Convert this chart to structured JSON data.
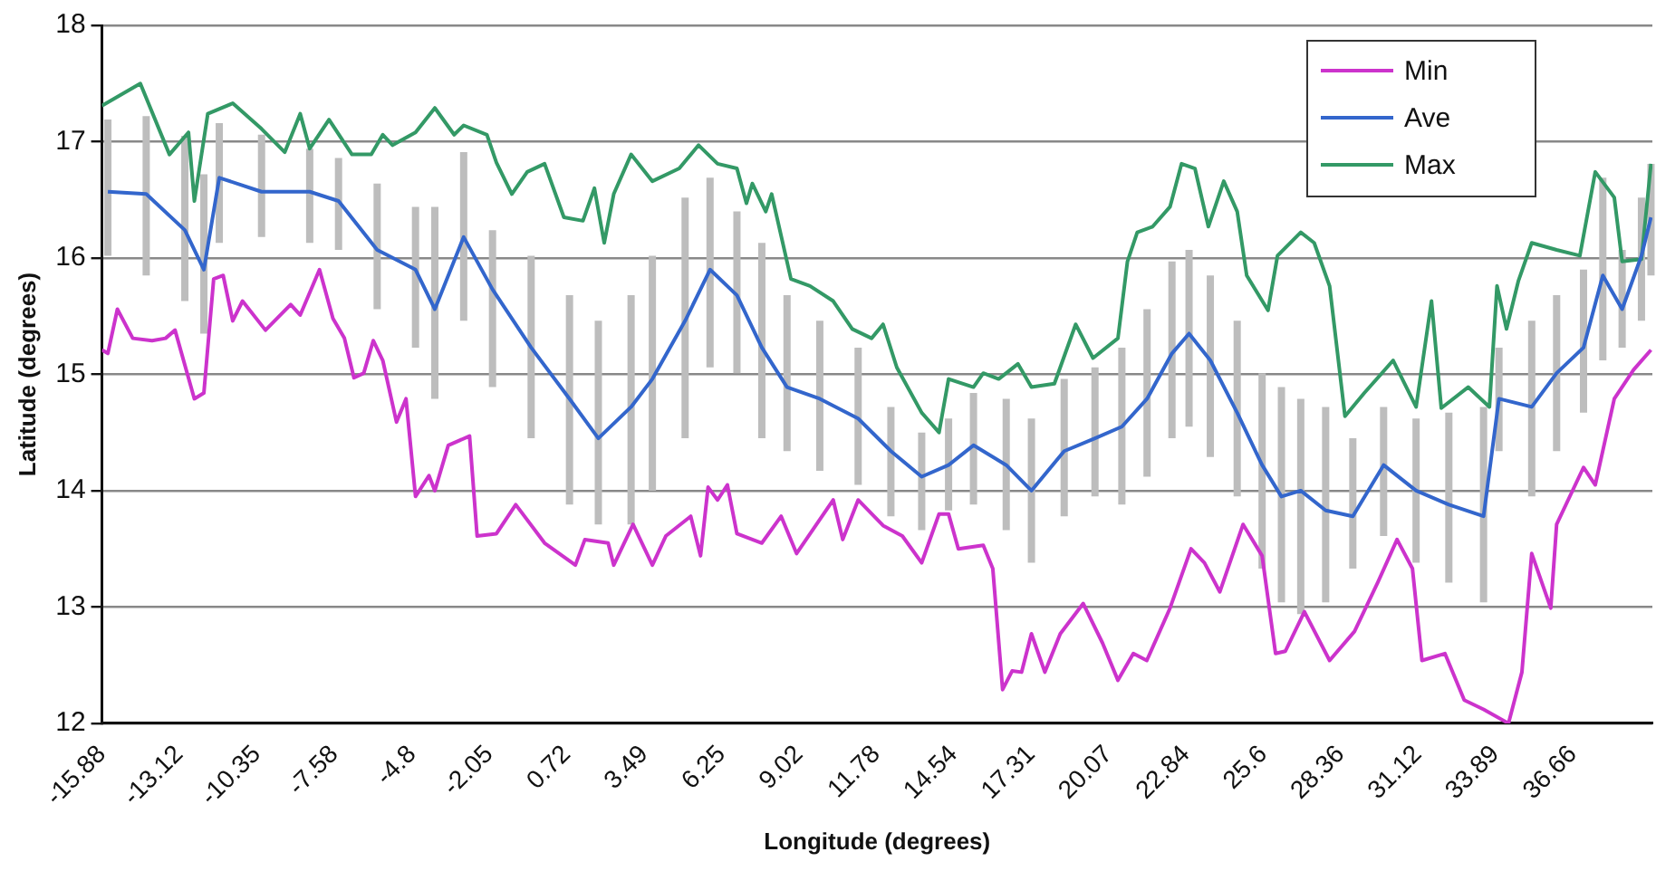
{
  "chart_data": {
    "type": "line",
    "xlabel": "Longitude (degrees)",
    "ylabel": "Latitude (degrees)",
    "xlim": [
      -15.88,
      39.5
    ],
    "xticks": [
      -15.88,
      -13.12,
      -10.35,
      -7.58,
      -4.8,
      -2.05,
      0.72,
      3.49,
      6.25,
      9.02,
      11.78,
      14.54,
      17.31,
      20.07,
      22.84,
      25.6,
      28.36,
      31.12,
      33.89,
      36.66
    ],
    "ylim": [
      12,
      18
    ],
    "yticks": [
      12,
      13,
      14,
      15,
      16,
      17,
      18
    ],
    "grid": "y",
    "legend": "top right",
    "marker": "none",
    "line_style": "solid",
    "series": [
      {
        "name": "Min",
        "color": "#cc33cc",
        "x": [
          -15.88,
          -15.67,
          -15.33,
          -14.78,
          -14.09,
          -13.61,
          -13.27,
          -12.58,
          -12.24,
          -11.89,
          -11.55,
          -11.21,
          -10.86,
          -10.04,
          -9.14,
          -8.8,
          -8.11,
          -7.63,
          -7.22,
          -6.88,
          -6.53,
          -6.19,
          -5.85,
          -5.36,
          -5.02,
          -4.68,
          -4.2,
          -3.99,
          -3.51,
          -2.75,
          -2.48,
          -1.79,
          -1.1,
          -0.07,
          1.03,
          1.37,
          2.2,
          2.4,
          3.09,
          3.78,
          4.26,
          5.15,
          5.5,
          5.77,
          6.11,
          6.46,
          6.8,
          7.69,
          8.38,
          8.93,
          10.24,
          10.58,
          11.13,
          12.02,
          12.71,
          13.4,
          14.02,
          14.36,
          14.71,
          15.6,
          15.94,
          16.29,
          16.63,
          16.97,
          17.32,
          17.8,
          18.35,
          19.17,
          19.86,
          20.41,
          20.96,
          21.44,
          22.27,
          23.02,
          23.5,
          24.05,
          24.88,
          25.56,
          26.04,
          26.39,
          27.07,
          27.97,
          28.86,
          29.69,
          30.38,
          30.93,
          31.27,
          32.09,
          32.78,
          33.47,
          34.36,
          34.84,
          35.19,
          35.87,
          36.08,
          37.04,
          37.46,
          38.14,
          38.83,
          39.45
        ],
        "values": [
          15.21,
          15.18,
          15.56,
          15.31,
          15.29,
          15.31,
          15.38,
          14.79,
          14.84,
          15.82,
          15.85,
          15.46,
          15.63,
          15.38,
          15.6,
          15.51,
          15.9,
          15.48,
          15.31,
          14.97,
          15.01,
          15.29,
          15.12,
          14.59,
          14.79,
          13.95,
          14.13,
          14.0,
          14.39,
          14.47,
          13.61,
          13.63,
          13.88,
          13.55,
          13.36,
          13.58,
          13.55,
          13.36,
          13.71,
          13.36,
          13.61,
          13.78,
          13.44,
          14.03,
          13.92,
          14.05,
          13.63,
          13.55,
          13.78,
          13.46,
          13.92,
          13.58,
          13.92,
          13.7,
          13.61,
          13.38,
          13.8,
          13.8,
          13.5,
          13.53,
          13.33,
          12.29,
          12.45,
          12.44,
          12.77,
          12.44,
          12.77,
          13.03,
          12.69,
          12.37,
          12.6,
          12.54,
          12.99,
          13.5,
          13.38,
          13.13,
          13.71,
          13.44,
          12.6,
          12.62,
          12.96,
          12.54,
          12.79,
          13.21,
          13.58,
          13.33,
          12.54,
          12.6,
          12.2,
          12.12,
          12.0,
          12.44,
          13.46,
          12.99,
          13.71,
          14.2,
          14.05,
          14.79,
          15.04,
          15.21
        ]
      },
      {
        "name": "Ave",
        "color": "#3366cc",
        "x": [
          -15.67,
          -14.3,
          -12.92,
          -12.24,
          -11.69,
          -10.18,
          -8.46,
          -7.43,
          -6.05,
          -4.68,
          -3.99,
          -2.96,
          -1.93,
          -0.55,
          0.82,
          1.85,
          3.02,
          3.78,
          4.95,
          5.84,
          6.8,
          7.69,
          8.59,
          9.76,
          11.13,
          12.3,
          13.4,
          14.36,
          15.25,
          16.42,
          17.32,
          18.49,
          19.59,
          20.55,
          21.45,
          22.34,
          22.95,
          23.71,
          24.67,
          25.56,
          26.25,
          26.94,
          27.83,
          28.8,
          29.9,
          31.06,
          32.23,
          33.47,
          34.02,
          35.19,
          36.08,
          37.04,
          37.73,
          38.42,
          39.11,
          39.45
        ],
        "values": [
          16.57,
          16.55,
          16.24,
          15.9,
          16.69,
          16.57,
          16.57,
          16.49,
          16.07,
          15.9,
          15.56,
          16.18,
          15.73,
          15.23,
          14.79,
          14.45,
          14.72,
          14.96,
          15.46,
          15.9,
          15.68,
          15.23,
          14.89,
          14.79,
          14.62,
          14.34,
          14.12,
          14.22,
          14.39,
          14.22,
          14.0,
          14.34,
          14.45,
          14.55,
          14.79,
          15.18,
          15.35,
          15.12,
          14.67,
          14.22,
          13.95,
          14.0,
          13.83,
          13.78,
          14.22,
          14.0,
          13.88,
          13.78,
          14.79,
          14.72,
          15.01,
          15.23,
          15.85,
          15.56,
          16.02,
          16.35
        ],
        "errors": [
          [
            16.02,
            17.19
          ],
          [
            15.85,
            17.22
          ],
          [
            15.63,
            17.05
          ],
          [
            15.35,
            16.72
          ],
          [
            16.13,
            17.16
          ],
          [
            16.18,
            17.06
          ],
          [
            16.13,
            16.94
          ],
          [
            16.07,
            16.86
          ],
          [
            15.56,
            16.64
          ],
          [
            15.23,
            16.44
          ],
          [
            14.79,
            16.44
          ],
          [
            15.46,
            16.91
          ],
          [
            14.89,
            16.24
          ],
          [
            14.45,
            16.02
          ],
          [
            13.88,
            15.68
          ],
          [
            13.71,
            15.46
          ],
          [
            13.71,
            15.68
          ],
          [
            14.0,
            16.02
          ],
          [
            14.45,
            16.52
          ],
          [
            15.06,
            16.69
          ],
          [
            15.01,
            16.4
          ],
          [
            14.45,
            16.13
          ],
          [
            14.34,
            15.68
          ],
          [
            14.17,
            15.46
          ],
          [
            14.05,
            15.23
          ],
          [
            13.78,
            14.72
          ],
          [
            13.66,
            14.5
          ],
          [
            13.83,
            14.62
          ],
          [
            13.88,
            14.84
          ],
          [
            13.66,
            14.79
          ],
          [
            13.38,
            14.62
          ],
          [
            13.78,
            14.96
          ],
          [
            13.95,
            15.06
          ],
          [
            13.88,
            15.23
          ],
          [
            14.12,
            15.56
          ],
          [
            14.45,
            15.97
          ],
          [
            14.55,
            16.07
          ],
          [
            14.29,
            15.85
          ],
          [
            13.95,
            15.46
          ],
          [
            13.33,
            15.01
          ],
          [
            13.04,
            14.89
          ],
          [
            12.94,
            14.79
          ],
          [
            13.04,
            14.72
          ],
          [
            13.33,
            14.45
          ],
          [
            13.61,
            14.72
          ],
          [
            13.38,
            14.62
          ],
          [
            13.21,
            14.67
          ],
          [
            13.04,
            14.72
          ],
          [
            14.34,
            15.23
          ],
          [
            13.95,
            15.46
          ],
          [
            14.34,
            15.68
          ],
          [
            14.67,
            15.9
          ],
          [
            15.12,
            16.69
          ],
          [
            15.23,
            16.07
          ],
          [
            15.46,
            16.52
          ],
          [
            15.85,
            16.81
          ]
        ]
      },
      {
        "name": "Max",
        "color": "#339966",
        "x": [
          -15.88,
          -14.51,
          -13.47,
          -12.79,
          -12.58,
          -12.1,
          -11.21,
          -10.18,
          -9.35,
          -8.8,
          -8.46,
          -7.77,
          -6.95,
          -6.26,
          -5.85,
          -5.5,
          -4.68,
          -3.99,
          -3.3,
          -2.96,
          -2.13,
          -1.79,
          -1.24,
          -0.69,
          -0.07,
          0.62,
          1.3,
          1.71,
          2.06,
          2.4,
          3.02,
          3.78,
          4.74,
          5.43,
          6.11,
          6.8,
          7.14,
          7.35,
          7.83,
          8.04,
          8.73,
          9.41,
          10.24,
          10.92,
          11.61,
          12.02,
          12.51,
          13.4,
          14.02,
          14.36,
          15.25,
          15.6,
          16.15,
          16.84,
          17.32,
          18.14,
          18.9,
          19.52,
          20.41,
          20.75,
          21.1,
          21.65,
          22.27,
          22.68,
          23.16,
          23.64,
          24.19,
          24.67,
          25.01,
          25.77,
          26.11,
          26.94,
          27.42,
          27.97,
          28.52,
          29.21,
          30.24,
          31.06,
          31.61,
          31.96,
          32.92,
          33.68,
          33.95,
          34.29,
          34.71,
          35.19,
          36.08,
          36.91,
          37.46,
          38.14,
          38.42,
          39.11,
          39.45
        ],
        "values": [
          17.31,
          17.5,
          16.89,
          17.08,
          16.49,
          17.24,
          17.33,
          17.11,
          16.91,
          17.24,
          16.94,
          17.19,
          16.89,
          16.89,
          17.06,
          16.97,
          17.08,
          17.29,
          17.06,
          17.14,
          17.06,
          16.82,
          16.55,
          16.74,
          16.81,
          16.35,
          16.32,
          16.6,
          16.13,
          16.55,
          16.89,
          16.66,
          16.77,
          16.97,
          16.81,
          16.77,
          16.47,
          16.64,
          16.4,
          16.55,
          15.82,
          15.76,
          15.63,
          15.39,
          15.31,
          15.43,
          15.06,
          14.67,
          14.5,
          14.96,
          14.89,
          15.01,
          14.96,
          15.09,
          14.89,
          14.92,
          15.43,
          15.14,
          15.31,
          15.97,
          16.22,
          16.27,
          16.44,
          16.81,
          16.77,
          16.27,
          16.66,
          16.4,
          15.85,
          15.55,
          16.02,
          16.22,
          16.13,
          15.76,
          14.64,
          14.84,
          15.12,
          14.72,
          15.63,
          14.71,
          14.89,
          14.72,
          15.76,
          15.39,
          15.8,
          16.13,
          16.07,
          16.02,
          16.74,
          16.52,
          15.97,
          15.99,
          16.81
        ]
      }
    ]
  }
}
